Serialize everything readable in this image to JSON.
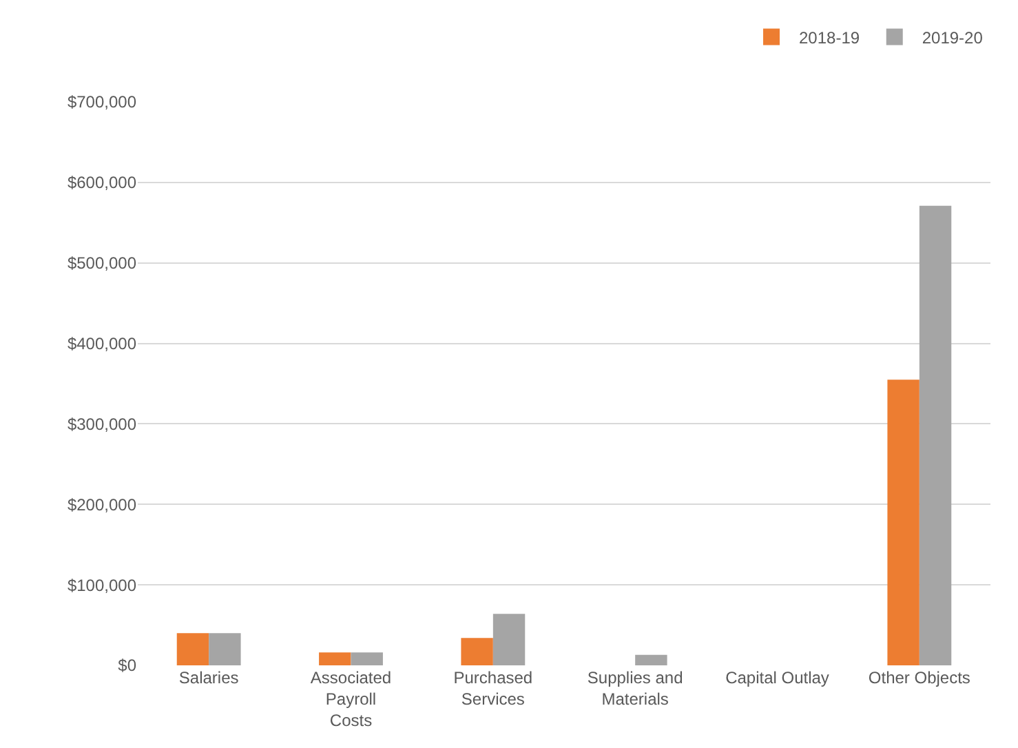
{
  "chart_data": {
    "type": "bar",
    "categories": [
      "Salaries",
      "Associated Payroll Costs",
      "Purchased Services",
      "Supplies and Materials",
      "Capital Outlay",
      "Other Objects"
    ],
    "series": [
      {
        "name": "2018-19",
        "color": "#ed7d31",
        "values": [
          40000,
          16000,
          34000,
          0,
          0,
          355000
        ]
      },
      {
        "name": "2019-20",
        "color": "#a5a5a5",
        "values": [
          40000,
          16000,
          64000,
          13000,
          0,
          571000
        ]
      }
    ],
    "ylim": [
      0,
      700000
    ],
    "yticks": [
      {
        "value": 0,
        "label": "$0"
      },
      {
        "value": 100000,
        "label": "$100,000"
      },
      {
        "value": 200000,
        "label": "$200,000"
      },
      {
        "value": 300000,
        "label": "$300,000"
      },
      {
        "value": 400000,
        "label": "$400,000"
      },
      {
        "value": 500000,
        "label": "$500,000"
      },
      {
        "value": 600000,
        "label": "$600,000"
      },
      {
        "value": 700000,
        "label": "$700,000"
      }
    ],
    "grid": "y",
    "legend": "top right"
  }
}
